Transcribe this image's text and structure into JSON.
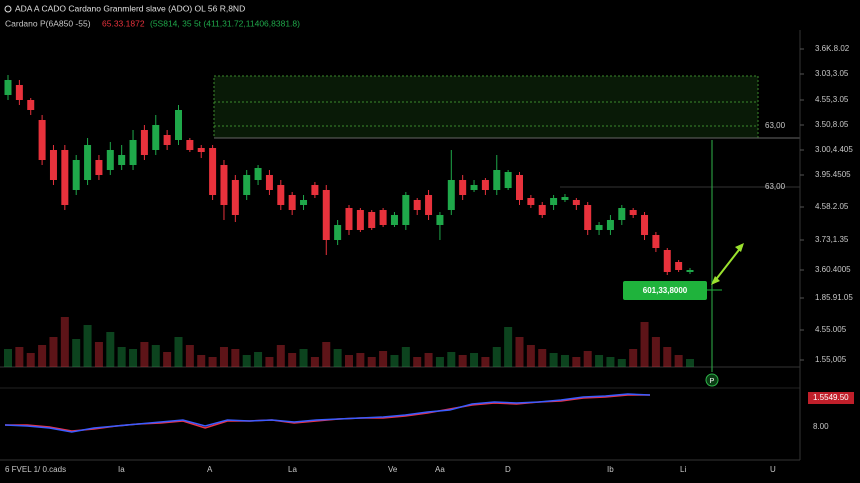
{
  "chart_data": {
    "type": "candlestick",
    "title": "ADA A CADO Cardano Granmlerd slave (ADO) OL 56 R,8ND",
    "subtitle": [
      "Cardano P(6A850 -55)",
      "65.33.1872",
      "(5S814, 35 5t (411,31.72,11406,8381.8)"
    ],
    "up_color": "#1fa84a",
    "down_color": "#e8323c",
    "open": [
      275,
      285,
      270,
      250,
      220,
      220,
      180,
      190,
      210,
      200,
      205,
      205,
      240,
      220,
      235,
      230,
      230,
      222,
      222,
      205,
      190,
      175,
      190,
      195,
      185,
      175,
      165,
      185,
      180,
      130,
      162,
      160,
      158,
      160,
      145,
      145,
      170,
      175,
      145,
      160,
      190,
      180,
      190,
      180,
      182,
      195,
      172,
      165,
      165,
      170,
      170,
      165,
      140,
      140,
      150,
      160,
      155,
      135,
      120,
      108,
      98
    ],
    "high": [
      295,
      290,
      272,
      255,
      225,
      225,
      215,
      232,
      215,
      228,
      225,
      240,
      245,
      255,
      240,
      265,
      232,
      225,
      225,
      210,
      195,
      200,
      205,
      200,
      190,
      178,
      175,
      188,
      185,
      150,
      165,
      162,
      160,
      162,
      158,
      178,
      172,
      180,
      158,
      220,
      195,
      190,
      192,
      215,
      200,
      198,
      175,
      168,
      175,
      176,
      172,
      168,
      148,
      155,
      165,
      162,
      158,
      138,
      122,
      110,
      102
    ],
    "low": [
      270,
      265,
      255,
      205,
      185,
      160,
      175,
      185,
      190,
      195,
      200,
      200,
      210,
      215,
      220,
      225,
      218,
      212,
      170,
      150,
      148,
      170,
      185,
      175,
      160,
      155,
      160,
      172,
      115,
      125,
      135,
      138,
      140,
      143,
      143,
      140,
      155,
      150,
      130,
      155,
      170,
      178,
      175,
      175,
      180,
      165,
      162,
      152,
      160,
      168,
      160,
      135,
      135,
      135,
      145,
      152,
      130,
      118,
      95,
      98,
      96
    ],
    "close": [
      290,
      270,
      260,
      210,
      190,
      165,
      210,
      225,
      195,
      220,
      215,
      230,
      215,
      245,
      225,
      260,
      220,
      218,
      175,
      165,
      155,
      195,
      202,
      180,
      165,
      160,
      170,
      175,
      130,
      145,
      140,
      140,
      142,
      145,
      155,
      175,
      160,
      155,
      155,
      190,
      175,
      185,
      180,
      200,
      198,
      170,
      165,
      155,
      172,
      173,
      165,
      140,
      145,
      150,
      162,
      155,
      135,
      122,
      98,
      100,
      100
    ],
    "volume": [
      18,
      20,
      14,
      22,
      30,
      50,
      28,
      42,
      25,
      35,
      20,
      18,
      25,
      22,
      15,
      30,
      22,
      12,
      10,
      20,
      18,
      12,
      15,
      10,
      22,
      14,
      18,
      10,
      25,
      18,
      12,
      14,
      10,
      16,
      12,
      20,
      10,
      14,
      10,
      15,
      12,
      14,
      10,
      20,
      40,
      30,
      22,
      18,
      14,
      12,
      10,
      16,
      12,
      10,
      8,
      18,
      45,
      30,
      20,
      12,
      8
    ],
    "ylim": [
      0,
      340
    ],
    "yticks": [
      {
        "value": 321,
        "label": "3.6K.8.02"
      },
      {
        "value": 296,
        "label": "3.03,3.05"
      },
      {
        "value": 270,
        "label": "4.55,3.05"
      },
      {
        "value": 245,
        "label": "3.50,8.05"
      },
      {
        "value": 220,
        "label": "3.00,4.405"
      },
      {
        "value": 195,
        "label": "3.95.4505"
      },
      {
        "value": 163,
        "label": "4.58.2.05"
      },
      {
        "value": 130,
        "label": "3.73,1.35"
      },
      {
        "value": 100,
        "label": "3.60.4005"
      },
      {
        "value": 72,
        "label": "1.85.91.05"
      },
      {
        "value": 40,
        "label": "4.55.005"
      },
      {
        "value": 10,
        "label": "1.55,005"
      }
    ],
    "volume_ylim": [
      0,
      60
    ],
    "x_labels": [
      "6 FVEL 1/ 0.cads",
      "Ia",
      "A",
      "La",
      "Ve",
      "Aa",
      "D",
      "Ib",
      "Li",
      "U"
    ],
    "annotations": [
      "63,00",
      "63,00",
      "601,33,8000",
      "P"
    ],
    "indicator": {
      "ylim": [
        0,
        50
      ],
      "label": "1.5549.50",
      "tick": "8.00",
      "lines": [
        {
          "color": "#e8344a",
          "values": [
            15,
            15,
            13,
            9,
            11,
            14,
            16,
            17,
            19,
            12,
            19,
            19,
            20,
            17,
            19,
            21,
            22,
            22,
            24,
            27,
            31,
            35,
            37,
            36,
            38,
            39,
            42,
            43,
            45,
            45
          ]
        },
        {
          "color": "#3a5cff",
          "values": [
            15,
            14,
            12,
            8,
            12,
            14,
            16,
            18,
            20,
            14,
            20,
            19,
            20,
            18,
            20,
            21,
            22,
            23,
            25,
            28,
            30,
            36,
            38,
            37,
            38,
            40,
            43,
            44,
            46,
            45
          ]
        }
      ]
    }
  }
}
